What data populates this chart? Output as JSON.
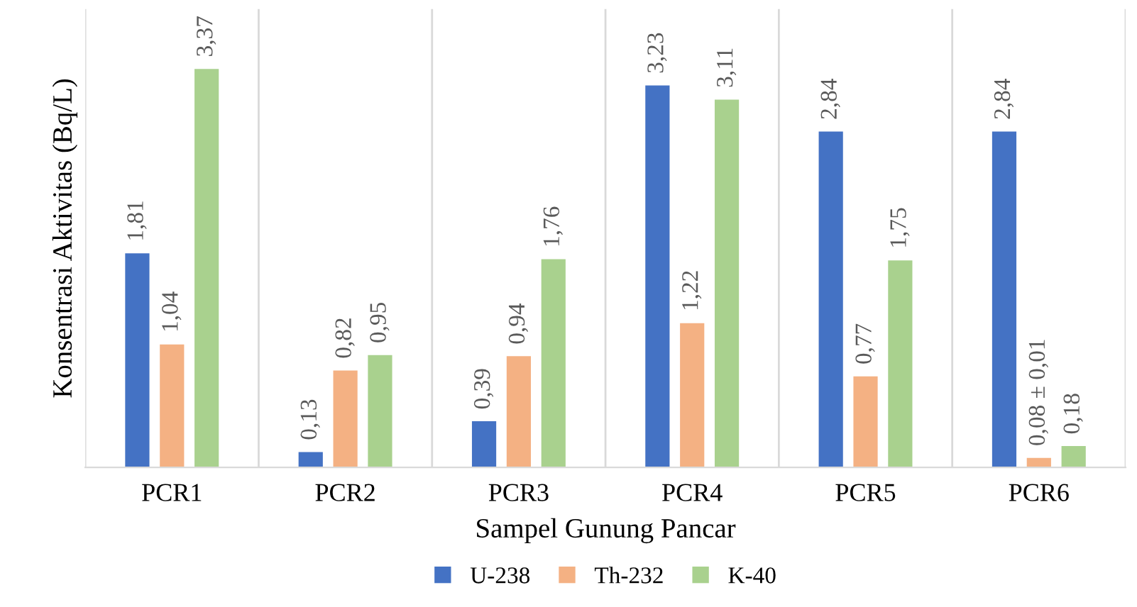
{
  "chart_data": {
    "type": "bar",
    "xlabel": "Sampel Gunung Pancar",
    "ylabel": "Konsentrasi Aktivitas (Bq/L)",
    "categories": [
      "PCR1",
      "PCR2",
      "PCR3",
      "PCR4",
      "PCR5",
      "PCR6"
    ],
    "series": [
      {
        "name": "U-238",
        "color": "#4472c4",
        "values": [
          1.81,
          0.13,
          0.39,
          3.23,
          2.84,
          2.84
        ],
        "value_labels": [
          "1,81",
          "0,13",
          "0,39",
          "3,23",
          "2,84",
          "2,84"
        ]
      },
      {
        "name": "Th-232",
        "color": "#f4b183",
        "values": [
          1.04,
          0.82,
          0.94,
          1.22,
          0.77,
          0.08
        ],
        "value_labels": [
          "1,04",
          "0,82",
          "0,94",
          "1,22",
          "0,77",
          "0,08 ± 0,01"
        ]
      },
      {
        "name": "K-40",
        "color": "#a9d18e",
        "values": [
          3.37,
          0.95,
          1.76,
          3.11,
          1.75,
          0.18
        ],
        "value_labels": [
          "3,37",
          "0,95",
          "1,76",
          "3,11",
          "1,75",
          "0,18"
        ]
      }
    ],
    "grid": "x",
    "legend": "bottom",
    "tick_labels": "x"
  }
}
